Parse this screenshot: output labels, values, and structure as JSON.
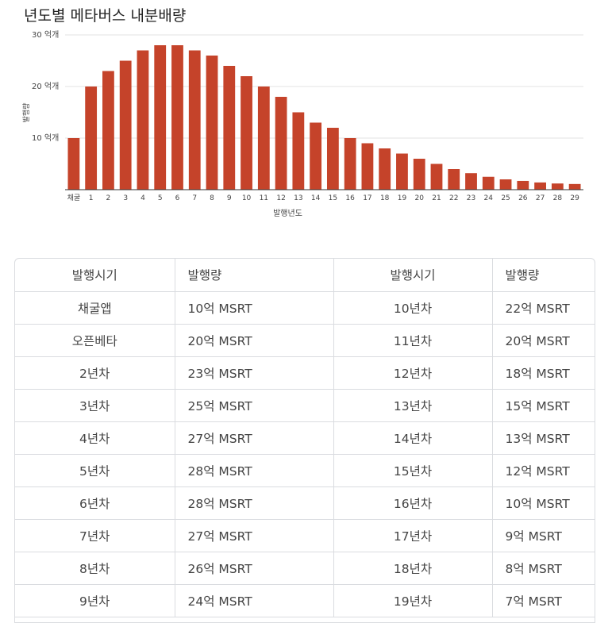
{
  "chart_data": {
    "type": "bar",
    "title": "년도별 메타버스 내분배량",
    "xlabel": "발행년도",
    "ylabel": "발행량",
    "y_tick_labels": [
      "30 억개",
      "20 억개",
      "10 억개"
    ],
    "y_tick_values": [
      30,
      20,
      10
    ],
    "ylim": [
      0,
      30
    ],
    "grid": true,
    "bar_color": "#c5432a",
    "categories": [
      "채굴",
      "1",
      "2",
      "3",
      "4",
      "5",
      "6",
      "7",
      "8",
      "9",
      "10",
      "11",
      "12",
      "13",
      "14",
      "15",
      "16",
      "17",
      "18",
      "19",
      "20",
      "21",
      "22",
      "23",
      "24",
      "25",
      "26",
      "27",
      "28",
      "29"
    ],
    "values": [
      10,
      20,
      23,
      25,
      27,
      28,
      28,
      27,
      26,
      24,
      22,
      20,
      18,
      15,
      13,
      12,
      10,
      9,
      8,
      7,
      6,
      5,
      4,
      3.2,
      2.5,
      2,
      1.7,
      1.4,
      1.2,
      1.1
    ]
  },
  "table": {
    "headers": [
      "발행시기",
      "발행량",
      "발행시기",
      "발행량"
    ],
    "rows": [
      [
        "채굴앱",
        "10억 MSRT",
        "10년차",
        "22억 MSRT"
      ],
      [
        "오픈베타",
        "20억 MSRT",
        "11년차",
        "20억 MSRT"
      ],
      [
        "2년차",
        "23억 MSRT",
        "12년차",
        "18억 MSRT"
      ],
      [
        "3년차",
        "25억 MSRT",
        "13년차",
        "15억 MSRT"
      ],
      [
        "4년차",
        "27억 MSRT",
        "14년차",
        "13억 MSRT"
      ],
      [
        "5년차",
        "28억 MSRT",
        "15년차",
        "12억 MSRT"
      ],
      [
        "6년차",
        "28억 MSRT",
        "16년차",
        "10억 MSRT"
      ],
      [
        "7년차",
        "27억 MSRT",
        "17년차",
        "9억 MSRT"
      ],
      [
        "8년차",
        "26억 MSRT",
        "18년차",
        "8억 MSRT"
      ],
      [
        "9년차",
        "24억 MSRT",
        "19년차",
        "7억 MSRT"
      ]
    ]
  }
}
